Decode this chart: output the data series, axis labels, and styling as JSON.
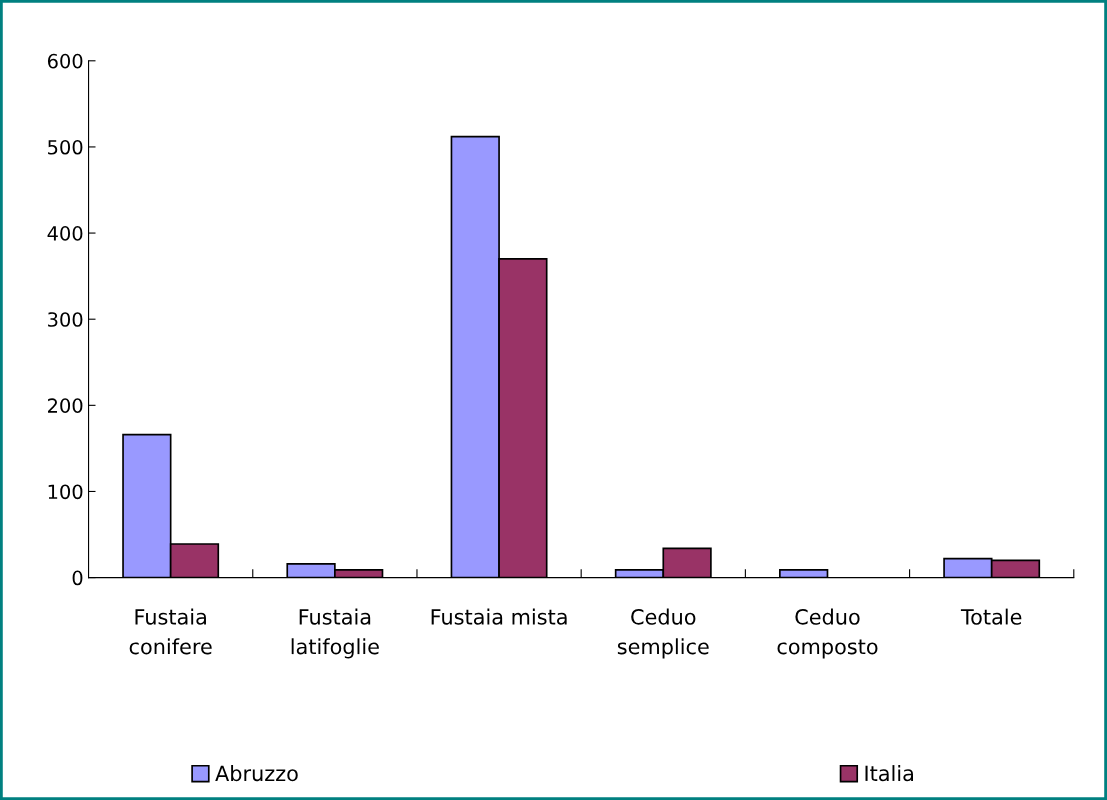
{
  "chart_data": {
    "type": "bar",
    "categories": [
      "Fustaia\nconifere",
      "Fustaia\nlatifoglie",
      "Fustaia mista",
      "Ceduo\nsemplice",
      "Ceduo\ncomposto",
      "Totale"
    ],
    "series": [
      {
        "name": "Abruzzo",
        "color": "#9999ff",
        "values": [
          166,
          16,
          512,
          9,
          9,
          22
        ]
      },
      {
        "name": "Italia",
        "color": "#993366",
        "values": [
          39,
          9,
          370,
          34,
          null,
          20
        ]
      }
    ],
    "ylim": [
      0,
      600
    ],
    "yticks": [
      0,
      100,
      200,
      300,
      400,
      500,
      600
    ],
    "grid": false,
    "legend": "bottom"
  }
}
